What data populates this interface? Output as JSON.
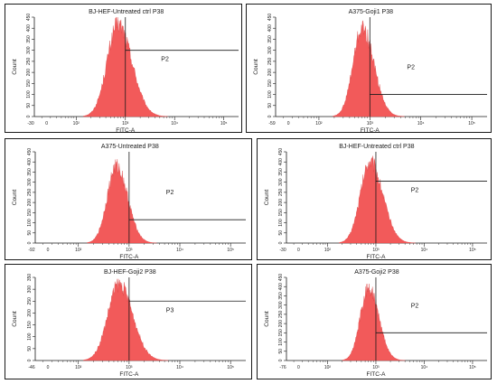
{
  "chart_data": [
    {
      "type": "area",
      "title": "BJ-HEF-Untreated ctrl P38",
      "xlabel": "FITC-A",
      "ylabel": "Count",
      "x_scale": "log",
      "x_ticks": [
        "10²",
        "10³",
        "10⁴",
        "10⁵"
      ],
      "x_min_label": "-30",
      "x_zero_label": "0",
      "ylim": [
        0,
        450
      ],
      "y_ticks": [
        0,
        50,
        100,
        150,
        200,
        250,
        300,
        350,
        400,
        450
      ],
      "peak": {
        "center_decade": 2.85,
        "height": 435,
        "sigma_left": 0.22,
        "sigma_right": 0.28
      },
      "gate": {
        "label": "P2",
        "start_decade": 3.0,
        "end_decade": 5.3,
        "level": 300
      },
      "color": "#f25a5a"
    },
    {
      "type": "area",
      "title": "A375-Goji1 P38",
      "xlabel": "FITC-A",
      "ylabel": "Count",
      "x_scale": "log",
      "x_ticks": [
        "10²",
        "10³",
        "10⁴",
        "10⁵"
      ],
      "x_min_label": "-59",
      "x_zero_label": "0",
      "ylim": [
        0,
        450
      ],
      "y_ticks": [
        0,
        50,
        100,
        150,
        200,
        250,
        300,
        350,
        400,
        450
      ],
      "peak": {
        "center_decade": 2.85,
        "height": 415,
        "sigma_left": 0.18,
        "sigma_right": 0.23
      },
      "gate": {
        "label": "P2",
        "start_decade": 3.0,
        "end_decade": 5.3,
        "level": 100
      },
      "color": "#f25a5a"
    },
    {
      "type": "area",
      "title": "A375-Untreated P38",
      "xlabel": "FITC-A",
      "ylabel": "Count",
      "x_scale": "log",
      "x_ticks": [
        "10²",
        "10³",
        "10⁴",
        "10⁵"
      ],
      "x_min_label": "-92",
      "x_zero_label": "0",
      "ylim": [
        0,
        450
      ],
      "y_ticks": [
        0,
        50,
        100,
        150,
        200,
        250,
        300,
        350,
        400,
        450
      ],
      "peak": {
        "center_decade": 2.75,
        "height": 395,
        "sigma_left": 0.18,
        "sigma_right": 0.22
      },
      "gate": {
        "label": "P2",
        "start_decade": 3.0,
        "end_decade": 5.3,
        "level": 115
      },
      "color": "#f25a5a"
    },
    {
      "type": "area",
      "title": "BJ-HEF-Untreated ctrl P38",
      "xlabel": "FITC-A",
      "ylabel": "Count",
      "x_scale": "log",
      "x_ticks": [
        "10²",
        "10³",
        "10⁴",
        "10⁵"
      ],
      "x_min_label": "-30",
      "x_zero_label": "0",
      "ylim": [
        0,
        450
      ],
      "y_ticks": [
        0,
        50,
        100,
        150,
        200,
        250,
        300,
        350,
        400,
        450
      ],
      "peak": {
        "center_decade": 2.88,
        "height": 420,
        "sigma_left": 0.2,
        "sigma_right": 0.26
      },
      "gate": {
        "label": "P2",
        "start_decade": 3.0,
        "end_decade": 5.3,
        "level": 305
      },
      "color": "#f25a5a"
    },
    {
      "type": "area",
      "title": "BJ-HEF-Goji2 P38",
      "xlabel": "FITC-A",
      "ylabel": "Count",
      "x_scale": "log",
      "x_ticks": [
        "10²",
        "10³",
        "10⁴",
        "10⁵"
      ],
      "x_min_label": "-46",
      "x_zero_label": "0",
      "ylim": [
        0,
        350
      ],
      "y_ticks": [
        0,
        50,
        100,
        150,
        200,
        250,
        300,
        350
      ],
      "peak": {
        "center_decade": 2.8,
        "height": 335,
        "sigma_left": 0.22,
        "sigma_right": 0.27
      },
      "gate": {
        "label": "P3",
        "start_decade": 3.0,
        "end_decade": 5.3,
        "level": 250
      },
      "color": "#f25a5a"
    },
    {
      "type": "area",
      "title": "A375-Goji2 P38",
      "xlabel": "FITC-A",
      "ylabel": "Count",
      "x_scale": "log",
      "x_ticks": [
        "10²",
        "10³",
        "10⁴",
        "10⁵"
      ],
      "x_min_label": "-76",
      "x_zero_label": "0",
      "ylim": [
        0,
        450
      ],
      "y_ticks": [
        0,
        50,
        100,
        150,
        200,
        250,
        300,
        350,
        400,
        450
      ],
      "peak": {
        "center_decade": 2.85,
        "height": 410,
        "sigma_left": 0.17,
        "sigma_right": 0.21
      },
      "gate": {
        "label": "P2",
        "start_decade": 3.0,
        "end_decade": 5.3,
        "level": 150
      },
      "color": "#f25a5a"
    }
  ]
}
